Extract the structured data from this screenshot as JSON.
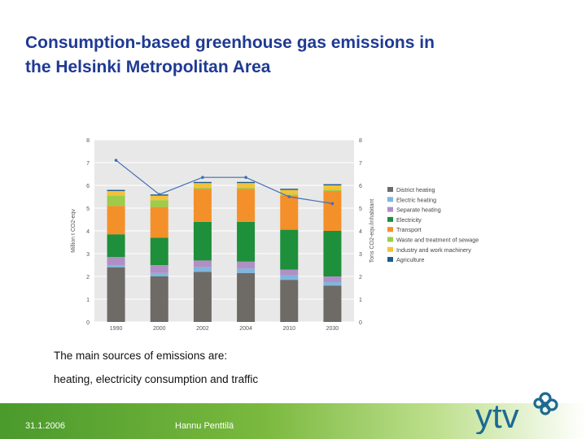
{
  "title_line1": "Consumption-based greenhouse gas emissions in",
  "title_line2": "the Helsinki Metropolitan Area",
  "caption_line1": "The main sources of emissions are:",
  "caption_line2": "heating, electricity consumption and traffic",
  "footer": {
    "date": "31.1.2006",
    "author": "Hannu Penttilä"
  },
  "logo": {
    "text": "ytv",
    "color": "#1b6a93"
  },
  "colors": {
    "title": "#1f3a93",
    "plot_bg": "#e8e8e8",
    "District heating": "#6e6a66",
    "Electric heating": "#7fb6df",
    "Separate heating": "#b090c4",
    "Electricity": "#1e8f3a",
    "Transport": "#f4902a",
    "Waste and treatment of sewage": "#9ccc4a",
    "Industry and work machinery": "#f3c23a",
    "Agriculture": "#1f5a8a",
    "line": "#3e6fb5"
  },
  "chart_data": {
    "type": "bar",
    "stacked": true,
    "categories": [
      "1990",
      "2000",
      "2002",
      "2004",
      "2010",
      "2030"
    ],
    "ylabel": "Million t CO2-eqv",
    "y2label": "Tons CO2-eqv./inhabitant",
    "ylim": [
      0,
      8
    ],
    "y2lim": [
      0,
      8
    ],
    "yticks": [
      0,
      1,
      2,
      3,
      4,
      5,
      6,
      7,
      8
    ],
    "grid": true,
    "legend_position": "right",
    "series": [
      {
        "name": "District heating",
        "values": [
          2.4,
          2.0,
          2.2,
          2.15,
          1.85,
          1.6
        ]
      },
      {
        "name": "Electric heating",
        "values": [
          0.1,
          0.15,
          0.2,
          0.2,
          0.2,
          0.15
        ]
      },
      {
        "name": "Separate heating",
        "values": [
          0.35,
          0.35,
          0.3,
          0.3,
          0.25,
          0.25
        ]
      },
      {
        "name": "Electricity",
        "values": [
          1.0,
          1.2,
          1.7,
          1.75,
          1.75,
          2.0
        ]
      },
      {
        "name": "Transport",
        "values": [
          1.25,
          1.35,
          1.45,
          1.45,
          1.5,
          1.75
        ]
      },
      {
        "name": "Waste and treatment of sewage",
        "values": [
          0.45,
          0.3,
          0.05,
          0.05,
          0.05,
          0.05
        ]
      },
      {
        "name": "Industry and work machinery",
        "values": [
          0.2,
          0.2,
          0.2,
          0.2,
          0.2,
          0.2
        ]
      },
      {
        "name": "Agriculture",
        "values": [
          0.05,
          0.05,
          0.05,
          0.05,
          0.05,
          0.05
        ]
      }
    ],
    "line_series": {
      "axis": "right",
      "values": [
        7.1,
        5.6,
        6.35,
        6.35,
        5.5,
        5.2
      ]
    }
  }
}
